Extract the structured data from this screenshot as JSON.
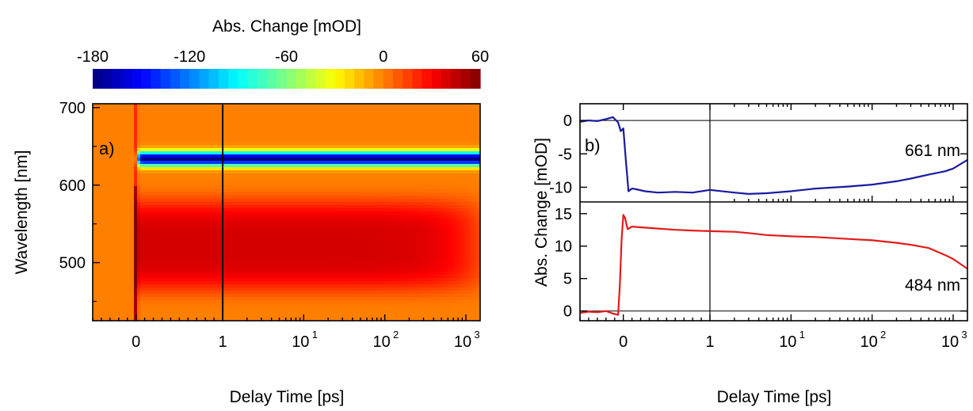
{
  "chart_data": [
    {
      "type": "heatmap",
      "panel_label": "a)",
      "xlabel": "Delay Time [ps]",
      "ylabel": "Wavelength [nm]",
      "x_axis": {
        "scale": "linear below 1 ps, logarithmic above 1 ps",
        "linear_range": [
          -0.5,
          1
        ],
        "log_range": [
          1,
          1500
        ],
        "linear_ticks": [
          {
            "value": 0,
            "label": "0"
          },
          {
            "value": 1,
            "label": "1"
          }
        ],
        "log_ticks": [
          {
            "value": 10,
            "label": "10",
            "exp": "1"
          },
          {
            "value": 100,
            "label": "10",
            "exp": "2"
          },
          {
            "value": 1000,
            "label": "10",
            "exp": "3"
          }
        ]
      },
      "ylim": [
        425,
        705
      ],
      "y_ticks": [
        500,
        600,
        700
      ],
      "colorbar": {
        "title": "Abs. Change [mOD]",
        "range": [
          -180,
          60
        ],
        "ticks": [
          -180,
          -120,
          -60,
          0,
          60
        ],
        "colormap": "jet"
      },
      "features": [
        {
          "name": "negative band",
          "center_nm": 634,
          "width_nm": 18,
          "min_mOD": -180,
          "time_range_ps": [
            0.02,
            1500
          ]
        },
        {
          "name": "positive band",
          "center_nm": 522,
          "width_nm": 58,
          "max_mOD": 40,
          "time_range_ps": [
            0,
            1000
          ]
        }
      ],
      "grid": false
    },
    {
      "type": "line",
      "panel_label": "b)",
      "xlabel": "Delay Time [ps]",
      "ylabel": "Abs. Change [mOD]",
      "x_axis": {
        "scale": "linear below 1 ps, logarithmic above 1 ps",
        "linear_range": [
          -0.5,
          1
        ],
        "log_range": [
          1,
          1500
        ],
        "linear_ticks": [
          {
            "value": 0,
            "label": "0"
          },
          {
            "value": 1,
            "label": "1"
          }
        ],
        "log_ticks": [
          {
            "value": 10,
            "label": "10",
            "exp": "1"
          },
          {
            "value": 100,
            "label": "10",
            "exp": "2"
          },
          {
            "value": 1000,
            "label": "10",
            "exp": "3"
          }
        ]
      },
      "subplots": [
        {
          "label": "661 nm",
          "color": "#1a1aa0",
          "ylim": [
            -12.2,
            2.5
          ],
          "y_ticks": [
            0,
            -5,
            -10
          ],
          "x": [
            -0.5,
            -0.4,
            -0.3,
            -0.2,
            -0.12,
            -0.06,
            -0.03,
            0.0,
            0.03,
            0.06,
            0.1,
            0.15,
            0.25,
            0.4,
            0.6,
            0.8,
            1,
            2,
            3,
            5,
            10,
            20,
            50,
            100,
            200,
            300,
            500,
            800,
            1000,
            1500
          ],
          "y": [
            -0.2,
            0.0,
            -0.1,
            0.2,
            0.5,
            -0.3,
            -1.6,
            -1.2,
            -6.0,
            -10.6,
            -10.2,
            -10.3,
            -10.6,
            -10.8,
            -10.7,
            -10.8,
            -10.4,
            -10.8,
            -11.0,
            -10.9,
            -10.6,
            -10.2,
            -9.9,
            -9.6,
            -9.1,
            -8.7,
            -8.1,
            -7.6,
            -7.2,
            -5.9
          ]
        },
        {
          "label": "484 nm",
          "color": "#e41a1a",
          "ylim": [
            -1.5,
            16.8
          ],
          "y_ticks": [
            0,
            5,
            10,
            15
          ],
          "x": [
            -0.5,
            -0.4,
            -0.3,
            -0.2,
            -0.12,
            -0.06,
            -0.04,
            -0.02,
            0.0,
            0.02,
            0.05,
            0.1,
            0.2,
            0.4,
            0.6,
            0.8,
            1,
            2,
            3,
            5,
            10,
            20,
            50,
            100,
            200,
            300,
            500,
            800,
            1000,
            1500
          ],
          "y": [
            -0.3,
            -0.1,
            -0.2,
            0.0,
            -0.4,
            -0.6,
            4.0,
            11.0,
            14.8,
            14.3,
            12.6,
            13.0,
            12.9,
            12.7,
            12.5,
            12.4,
            12.3,
            12.2,
            12.0,
            11.7,
            11.5,
            11.4,
            11.1,
            10.9,
            10.5,
            10.2,
            9.7,
            8.6,
            8.0,
            6.5
          ]
        }
      ],
      "grid": false
    }
  ]
}
